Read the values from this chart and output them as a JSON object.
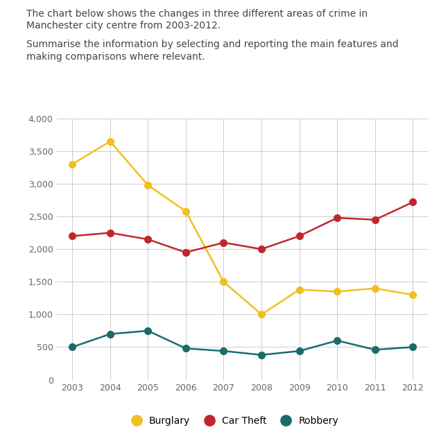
{
  "years": [
    2003,
    2004,
    2005,
    2006,
    2007,
    2008,
    2009,
    2010,
    2011,
    2012
  ],
  "burglary": [
    3300,
    3650,
    2980,
    2580,
    1500,
    1000,
    1380,
    1350,
    1400,
    1300
  ],
  "car_theft": [
    2200,
    2250,
    2150,
    1950,
    2100,
    2000,
    2200,
    2480,
    2450,
    2720
  ],
  "robbery": [
    500,
    700,
    750,
    480,
    440,
    380,
    440,
    600,
    460,
    500
  ],
  "burglary_color": "#f0c020",
  "car_theft_color": "#c0272d",
  "robbery_color": "#1a6b6b",
  "title_line1": "The chart below shows the changes in three different areas of crime in",
  "title_line2": "Manchester city centre from 2003-2012.",
  "subtitle_line1": "Summarise the information by selecting and reporting the main features and",
  "subtitle_line2": "making comparisons where relevant.",
  "ylim": [
    0,
    4000
  ],
  "yticks": [
    0,
    500,
    1000,
    1500,
    2000,
    2500,
    3000,
    3500,
    4000
  ],
  "ytick_labels": [
    "0",
    "500",
    "1,000",
    "1,500",
    "2,000",
    "2,500",
    "3,000",
    "3,500",
    "4,000"
  ],
  "background_color": "#ffffff",
  "grid_color": "#cccccc",
  "legend_labels": [
    "Burglary",
    "Car Theft",
    "Robbery"
  ],
  "marker_size": 7,
  "line_width": 1.8,
  "text_color": "#444444",
  "tick_color": "#666666",
  "title_fontsize": 10,
  "tick_fontsize": 9,
  "legend_fontsize": 10
}
